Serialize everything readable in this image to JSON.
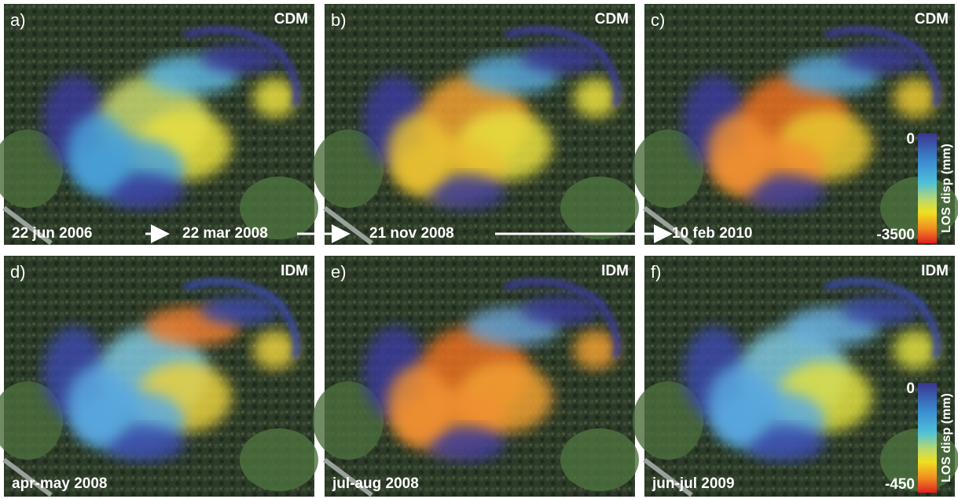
{
  "panels": [
    {
      "letter": "a)",
      "method": "CDM"
    },
    {
      "letter": "b)",
      "method": "CDM"
    },
    {
      "letter": "c)",
      "method": "CDM"
    },
    {
      "letter": "d)",
      "method": "IDM"
    },
    {
      "letter": "e)",
      "method": "IDM"
    },
    {
      "letter": "f)",
      "method": "IDM"
    }
  ],
  "timeline": [
    "22 jun 2006",
    "22 mar 2008",
    "21 nov 2008",
    "10 feb 2010"
  ],
  "bottom_labels": [
    "apr-may 2008",
    "jul-aug 2008",
    "jun-jul 2009"
  ],
  "colorbars": [
    {
      "label": "LOS disp (mm)",
      "top": 0,
      "bottom": -3500
    },
    {
      "label": "LOS disp (mm)",
      "top": 0,
      "bottom": -450
    }
  ]
}
